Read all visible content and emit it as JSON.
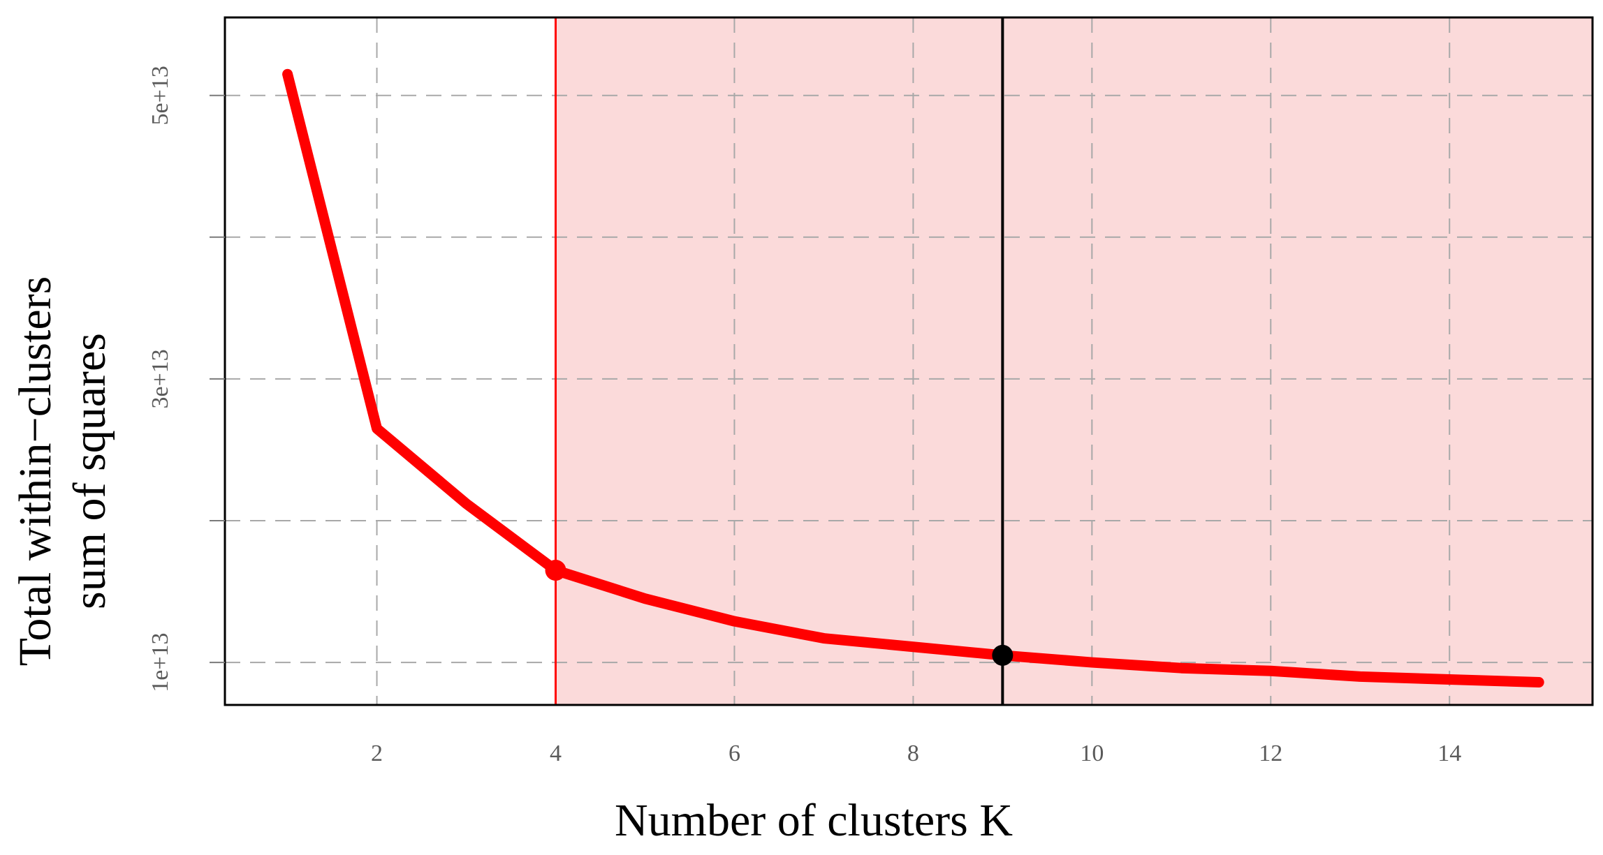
{
  "chart_data": {
    "type": "line",
    "title": "",
    "xlabel": "Number of clusters K",
    "ylabel_lines": [
      "Total within−clusters",
      "sum of squares"
    ],
    "x": [
      1,
      2,
      3,
      4,
      5,
      6,
      7,
      8,
      9,
      10,
      11,
      12,
      13,
      14,
      15
    ],
    "series": [
      {
        "values": [
          51500000000000.0,
          26500000000000.0,
          21200000000000.0,
          16500000000000.0,
          14500000000000.0,
          12900000000000.0,
          11700000000000.0,
          11100000000000.0,
          10500000000000.0,
          10000000000000.0,
          9600000000000.0,
          9400000000000.0,
          9000000000000.0,
          8800000000000.0,
          8600000000000.0
        ],
        "color": "#ff0000"
      }
    ],
    "xlim": [
      0.3,
      15.6
    ],
    "ylim": [
      7000000000000.0,
      55500000000000.0
    ],
    "xticks": [
      2,
      4,
      6,
      8,
      10,
      12,
      14
    ],
    "xtick_labels": [
      "2",
      "4",
      "6",
      "8",
      "10",
      "12",
      "14"
    ],
    "yticks": [
      10000000000000.0,
      20000000000000.0,
      30000000000000.0,
      40000000000000.0,
      50000000000000.0
    ],
    "ytick_labels": [
      "1e+13",
      "",
      "3e+13",
      "",
      "5e+13"
    ],
    "grid": true,
    "grid_style": "dashed",
    "shaded_region": {
      "x_start": 4,
      "x_end": 15.6,
      "color": "#fbdada"
    },
    "vlines": [
      {
        "x": 4,
        "color": "#ff0000"
      },
      {
        "x": 9,
        "color": "#000000"
      }
    ],
    "markers": [
      {
        "x": 4,
        "y": 16500000000000.0,
        "color": "#ff0000"
      },
      {
        "x": 9,
        "y": 10500000000000.0,
        "color": "#000000"
      }
    ]
  }
}
